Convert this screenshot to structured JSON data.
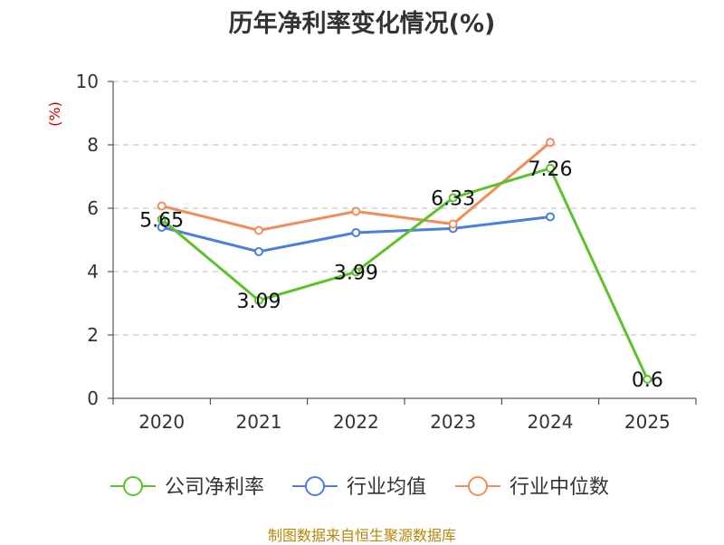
{
  "chart_data": {
    "type": "line",
    "title": "历年净利率变化情况(%)",
    "ylabel": "(%)",
    "xlabel": "",
    "categories": [
      "2020",
      "2021",
      "2022",
      "2023",
      "2024",
      "2025"
    ],
    "ylim": [
      0,
      10
    ],
    "yticks": [
      "0",
      "2",
      "4",
      "6",
      "8",
      "10"
    ],
    "grid": true,
    "legend_position": "bottom",
    "series": [
      {
        "name": "公司净利率",
        "color": "#5cc22a",
        "values": [
          5.65,
          3.09,
          3.99,
          6.33,
          7.26,
          0.6
        ],
        "labels": [
          "5.65",
          "3.09",
          "3.99",
          "6.33",
          "7.26",
          "0.6"
        ]
      },
      {
        "name": "行业均值",
        "color": "#4a7fdc",
        "values": [
          5.4,
          4.63,
          5.23,
          5.36,
          5.73,
          null
        ]
      },
      {
        "name": "行业中位数",
        "color": "#f28c5a",
        "values": [
          6.07,
          5.3,
          5.9,
          5.5,
          8.08,
          null
        ]
      }
    ],
    "axis_label_color": "#cc0000"
  },
  "source": "制图数据来自恒生聚源数据库"
}
